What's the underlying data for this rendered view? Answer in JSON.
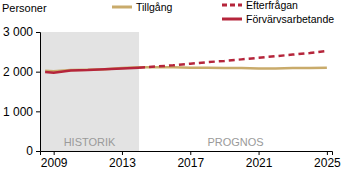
{
  "chart_data": {
    "type": "line",
    "y_label": "Personer",
    "annotations": [
      "HISTORIK",
      "PROGNOS"
    ],
    "shaded_x": [
      2008.2,
      2014
    ],
    "x": [
      2008.5,
      2009,
      2010,
      2011,
      2012,
      2013,
      2014,
      2015,
      2016,
      2017,
      2018,
      2019,
      2020,
      2021,
      2022,
      2023,
      2024,
      2025
    ],
    "series": [
      {
        "name": "Tillgång",
        "color": "#c9ab6b",
        "line_style": "solid",
        "values": [
          2020,
          2010,
          2040,
          2050,
          2060,
          2090,
          2110,
          2110,
          2110,
          2100,
          2100,
          2090,
          2090,
          2080,
          2080,
          2090,
          2090,
          2100
        ]
      },
      {
        "name": "Efterfrågan",
        "color": "#b5253b",
        "line_style": "dashed",
        "values": [
          null,
          null,
          null,
          null,
          null,
          null,
          2100,
          2130,
          2160,
          2200,
          2240,
          2270,
          2310,
          2350,
          2390,
          2430,
          2470,
          2520
        ]
      },
      {
        "name": "Förvärvsarbetande",
        "color": "#b5253b",
        "line_style": "solid",
        "values": [
          1990,
          1970,
          2030,
          2040,
          2060,
          2080,
          2100,
          null,
          null,
          null,
          null,
          null,
          null,
          null,
          null,
          null,
          null,
          null
        ]
      }
    ],
    "xlim": [
      2008.2,
      2025.3
    ],
    "xticks": [
      2009,
      2013,
      2017,
      2021,
      2025
    ],
    "ylim": [
      0,
      3000
    ],
    "yticks": [
      {
        "value": 0,
        "label": "0"
      },
      {
        "value": 1000,
        "label": "1 000"
      },
      {
        "value": 2000,
        "label": "2 000"
      },
      {
        "value": 3000,
        "label": "3 000"
      }
    ],
    "grid": false
  }
}
